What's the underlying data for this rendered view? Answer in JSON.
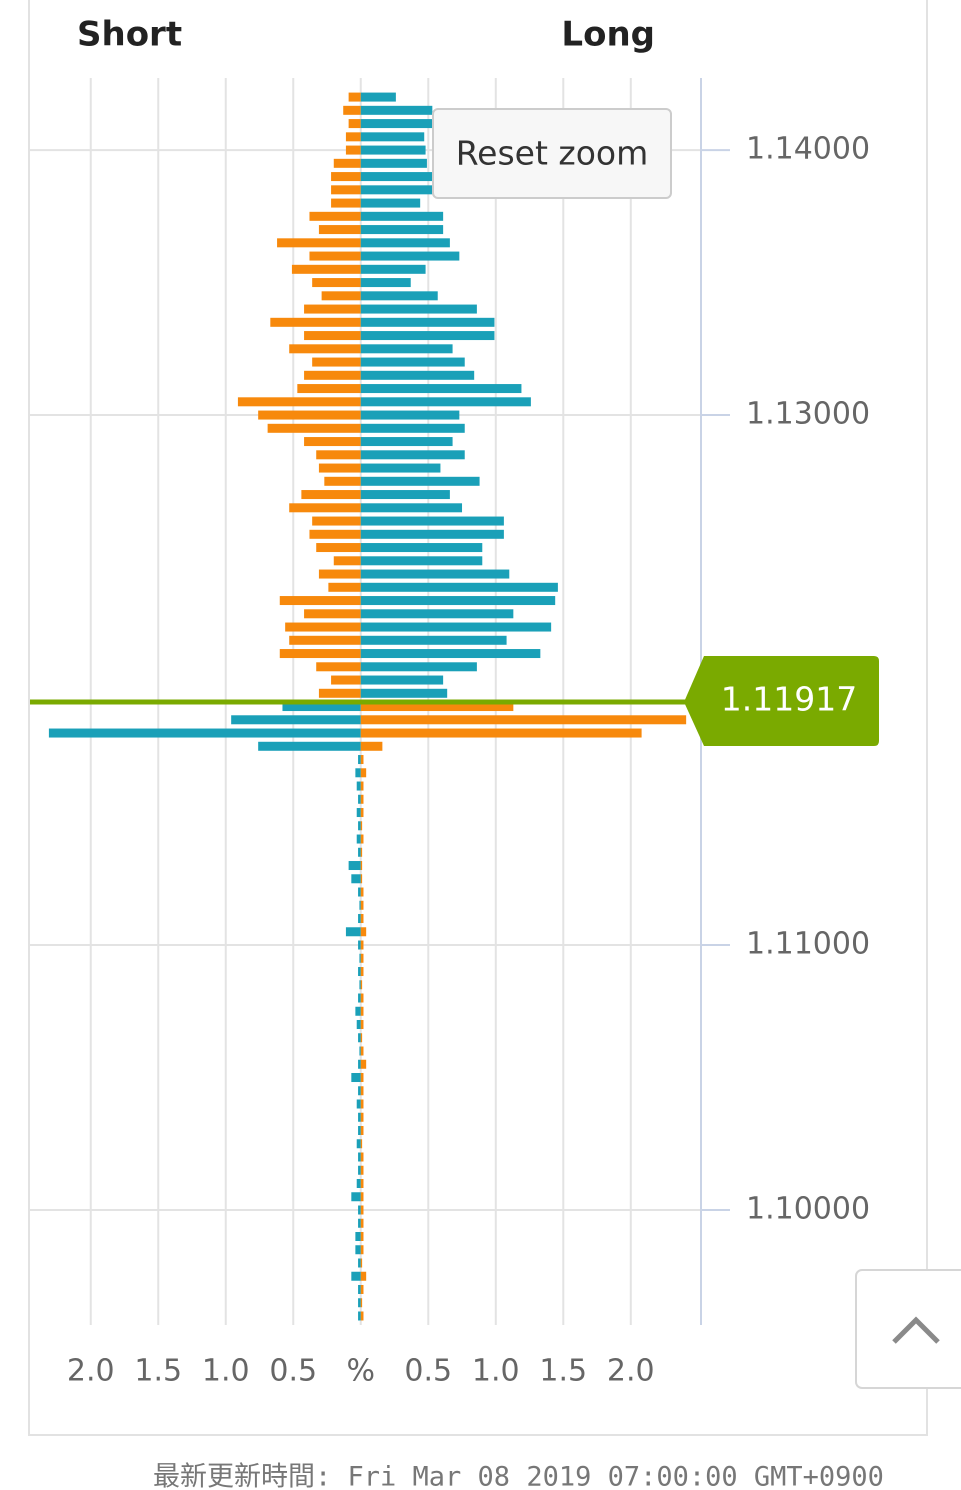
{
  "chart_data": {
    "type": "orderbook",
    "y": [
      1.142,
      1.1415,
      1.141,
      1.1405,
      1.14,
      1.1395,
      1.139,
      1.1385,
      1.138,
      1.1375,
      1.137,
      1.1365,
      1.136,
      1.1355,
      1.135,
      1.1345,
      1.134,
      1.1335,
      1.133,
      1.1325,
      1.132,
      1.1315,
      1.131,
      1.1305,
      1.13,
      1.1295,
      1.129,
      1.1285,
      1.128,
      1.1275,
      1.127,
      1.1265,
      1.126,
      1.1255,
      1.125,
      1.1245,
      1.124,
      1.1235,
      1.123,
      1.1225,
      1.122,
      1.1215,
      1.121,
      1.1205,
      1.12,
      1.1195,
      1.119,
      1.1185,
      1.118,
      1.1175,
      1.117,
      1.1165,
      1.116,
      1.1155,
      1.115,
      1.1145,
      1.114,
      1.1135,
      1.113,
      1.1125,
      1.112,
      1.1115,
      1.111,
      1.1105,
      1.11,
      1.1095,
      1.109,
      1.1085,
      1.108,
      1.1075,
      1.107,
      1.1065,
      1.106,
      1.1055,
      1.105,
      1.1045,
      1.104,
      1.1035,
      1.103,
      1.1025,
      1.102,
      1.1015,
      1.101,
      1.1005,
      1.1,
      1.0995,
      1.099,
      1.0985,
      1.098,
      1.0975,
      1.097,
      1.0965,
      1.096
    ],
    "series": [
      {
        "name": "Short",
        "side": "left",
        "color_above": "#f7890c",
        "color_below": "#1aa0b8",
        "values": [
          0.09,
          0.13,
          0.09,
          0.11,
          0.11,
          0.2,
          0.22,
          0.22,
          0.22,
          0.38,
          0.31,
          0.62,
          0.38,
          0.51,
          0.36,
          0.29,
          0.42,
          0.67,
          0.42,
          0.53,
          0.36,
          0.42,
          0.47,
          0.91,
          0.76,
          0.69,
          0.42,
          0.33,
          0.31,
          0.27,
          0.44,
          0.53,
          0.36,
          0.38,
          0.33,
          0.2,
          0.31,
          0.24,
          0.6,
          0.42,
          0.56,
          0.53,
          0.6,
          0.33,
          0.22,
          0.31,
          0.58,
          0.96,
          2.31,
          0.76,
          0.02,
          0.04,
          0.03,
          0.02,
          0.03,
          0.02,
          0.03,
          0.02,
          0.09,
          0.07,
          0.02,
          0.01,
          0.02,
          0.11,
          0.02,
          0.01,
          0.02,
          0.01,
          0.02,
          0.04,
          0.03,
          0.02,
          0.01,
          0.02,
          0.07,
          0.02,
          0.03,
          0.02,
          0.02,
          0.03,
          0.02,
          0.02,
          0.03,
          0.07,
          0.02,
          0.02,
          0.04,
          0.04,
          0.02,
          0.07,
          0.02,
          0.02,
          0.02
        ]
      },
      {
        "name": "Long",
        "side": "right",
        "color_above": "#1aa0b8",
        "color_below": "#f7890c",
        "values": [
          0.26,
          0.53,
          0.53,
          0.47,
          0.48,
          0.49,
          0.53,
          0.53,
          0.44,
          0.61,
          0.61,
          0.66,
          0.73,
          0.48,
          0.37,
          0.57,
          0.86,
          0.99,
          0.99,
          0.68,
          0.77,
          0.84,
          1.19,
          1.26,
          0.73,
          0.77,
          0.68,
          0.77,
          0.59,
          0.88,
          0.66,
          0.75,
          1.06,
          1.06,
          0.9,
          0.9,
          1.1,
          1.46,
          1.44,
          1.13,
          1.41,
          1.08,
          1.33,
          0.86,
          0.61,
          0.64,
          1.13,
          2.41,
          2.08,
          0.16,
          0.02,
          0.04,
          0.02,
          0.02,
          0.02,
          0.01,
          0.02,
          0.01,
          0.01,
          0.01,
          0.02,
          0.02,
          0.02,
          0.04,
          0.02,
          0.02,
          0.02,
          0.01,
          0.02,
          0.02,
          0.02,
          0.01,
          0.02,
          0.04,
          0.02,
          0.02,
          0.02,
          0.02,
          0.02,
          0.01,
          0.02,
          0.02,
          0.02,
          0.02,
          0.02,
          0.02,
          0.02,
          0.02,
          0.01,
          0.04,
          0.02,
          0.01,
          0.02
        ]
      }
    ],
    "xlim": [
      -2.45,
      2.52
    ],
    "xticks": [
      {
        "value": -2,
        "label": "2.0"
      },
      {
        "value": -1.5,
        "label": "1.5"
      },
      {
        "value": -1,
        "label": "1.0"
      },
      {
        "value": -0.5,
        "label": "0.5"
      },
      {
        "value": 0,
        "label": "%"
      },
      {
        "value": 0.5,
        "label": "0.5"
      },
      {
        "value": 1,
        "label": "1.0"
      },
      {
        "value": 1.5,
        "label": "1.5"
      },
      {
        "value": 2,
        "label": "2.0"
      }
    ],
    "ylim": [
      1.09566,
      1.14272
    ],
    "yticks": [
      {
        "value": 1.14,
        "label": "1.14000"
      },
      {
        "value": 1.13,
        "label": "1.13000"
      },
      {
        "value": 1.11,
        "label": "1.11000"
      },
      {
        "value": 1.1,
        "label": "1.10000"
      }
    ],
    "grid": true,
    "current_price": {
      "value": 1.11917,
      "label": "1.11917"
    },
    "current_price_color": "#7aaa00"
  },
  "reset_zoom": "Reset zoom",
  "footer": "最新更新時間: Fri Mar 08 2019 07:00:00 GMT+0900"
}
